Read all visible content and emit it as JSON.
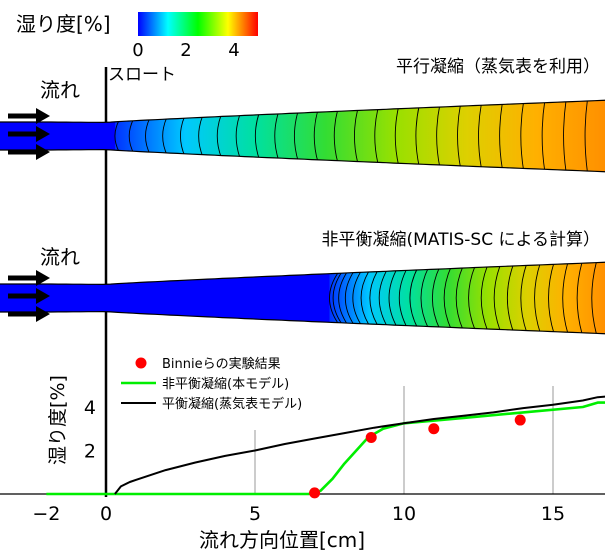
{
  "colorbar": {
    "label": "湿り度[%]",
    "ticks": [
      {
        "label": "0",
        "value": 0
      },
      {
        "label": "2",
        "value": 2
      },
      {
        "label": "4",
        "value": 4
      }
    ],
    "range": [
      0,
      5
    ],
    "colors": [
      "#0000ff",
      "#00ffff",
      "#00ff00",
      "#ffff00",
      "#ff0000"
    ]
  },
  "throat_label": "スロート",
  "nozzle_equilibrium": {
    "title": "平行凝縮（蒸気表を利用）",
    "flow_label": "流れ",
    "onset_cm": 0.3,
    "peak_cm": 16.8,
    "colors": [
      "#0033ff",
      "#00c8ff",
      "#00e0a0",
      "#33dd33",
      "#99e000",
      "#ddd000",
      "#ffb000",
      "#ff9000"
    ]
  },
  "nozzle_nonequilibrium": {
    "title": "非平衡凝縮(MATIS-SC による計算）",
    "flow_label": "流れ",
    "onset_cm": 7.5,
    "peak_cm": 16.8,
    "colors": [
      "#0033ff",
      "#00c8ff",
      "#00e0a0",
      "#33dd33",
      "#99e000",
      "#ddd000",
      "#ffb000",
      "#ff9000"
    ]
  },
  "chart_data": {
    "type": "line",
    "xlabel": "流れ方向位置[cm]",
    "ylabel": "湿り度[%]",
    "xlim": [
      -2,
      17
    ],
    "ylim": [
      0,
      5
    ],
    "xticks": [
      -2,
      0,
      5,
      10,
      15
    ],
    "yticks": [
      2,
      4
    ],
    "grid_x": [
      5,
      10,
      15
    ],
    "legend": "top-left",
    "series": [
      {
        "name": "Binnieらの実験結果",
        "kind": "scatter",
        "color": "#ff0000",
        "x": [
          7.0,
          8.9,
          11.0,
          13.9
        ],
        "y": [
          0.05,
          2.6,
          3.0,
          3.4
        ]
      },
      {
        "name": "非平衡凝縮(本モデル)",
        "kind": "line",
        "color": "#00ee00",
        "x": [
          -2,
          0,
          5,
          6.8,
          7.2,
          7.6,
          8.0,
          8.4,
          8.8,
          9.3,
          10,
          12,
          14,
          16,
          16.5,
          17
        ],
        "y": [
          0,
          0,
          0,
          0,
          0.15,
          0.7,
          1.4,
          2.0,
          2.6,
          3.0,
          3.25,
          3.5,
          3.75,
          4.0,
          4.2,
          4.2
        ]
      },
      {
        "name": "平衡凝縮(蒸気表モデル)",
        "kind": "line",
        "color": "#000000",
        "x": [
          0.3,
          0.5,
          0.8,
          1,
          2,
          3,
          4,
          5,
          6,
          7,
          8,
          9,
          10,
          11,
          12,
          13,
          14,
          15,
          16,
          16.5,
          17
        ],
        "y": [
          0,
          0.35,
          0.55,
          0.65,
          1.1,
          1.45,
          1.75,
          2.0,
          2.3,
          2.55,
          2.8,
          3.05,
          3.25,
          3.45,
          3.6,
          3.75,
          3.95,
          4.1,
          4.3,
          4.45,
          4.5
        ]
      }
    ]
  }
}
